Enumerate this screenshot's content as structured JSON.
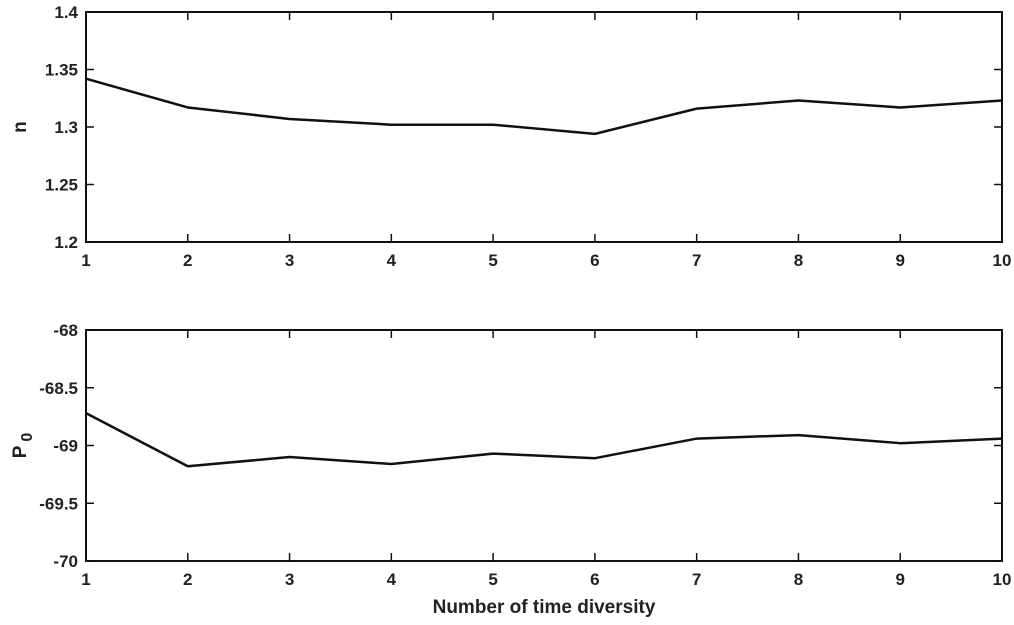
{
  "chart_data": [
    {
      "type": "line",
      "ylabel": "n",
      "xlabel": "",
      "xlim": [
        1,
        10
      ],
      "ylim": [
        1.2,
        1.4
      ],
      "xticks": [
        "1",
        "2",
        "3",
        "4",
        "5",
        "6",
        "7",
        "8",
        "9",
        "10"
      ],
      "yticks": [
        "1.2",
        "1.25",
        "1.3",
        "1.35",
        "1.4"
      ],
      "grid": false,
      "series": [
        {
          "x": [
            1,
            2,
            3,
            4,
            5,
            6,
            7,
            8,
            9,
            10
          ],
          "values": [
            1.342,
            1.317,
            1.307,
            1.302,
            1.302,
            1.294,
            1.316,
            1.323,
            1.317,
            1.323
          ]
        }
      ]
    },
    {
      "type": "line",
      "ylabel": "P",
      "ylabel_sub": "0",
      "xlabel": "Number of time diversity",
      "xlim": [
        1,
        10
      ],
      "ylim": [
        -70,
        -68
      ],
      "xticks": [
        "1",
        "2",
        "3",
        "4",
        "5",
        "6",
        "7",
        "8",
        "9",
        "10"
      ],
      "yticks": [
        "-70",
        "-69.5",
        "-69",
        "-68.5",
        "-68"
      ],
      "grid": false,
      "series": [
        {
          "x": [
            1,
            2,
            3,
            4,
            5,
            6,
            7,
            8,
            9,
            10
          ],
          "values": [
            -68.72,
            -69.18,
            -69.1,
            -69.16,
            -69.07,
            -69.11,
            -68.94,
            -68.91,
            -68.98,
            -68.94
          ]
        }
      ]
    }
  ]
}
